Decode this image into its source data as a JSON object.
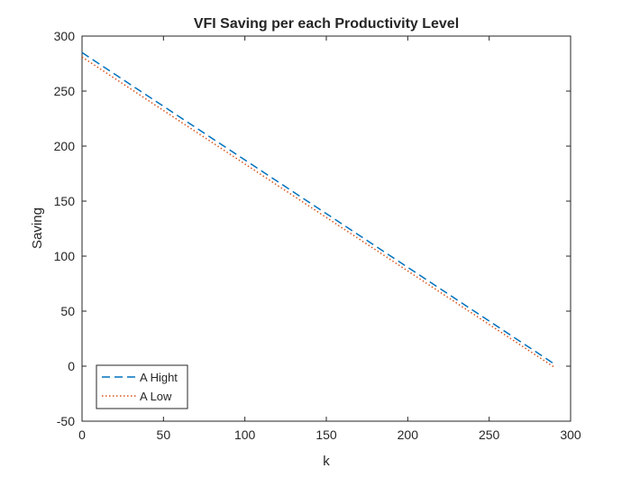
{
  "chart_data": {
    "type": "line",
    "title": "VFI Saving per each Productivity Level",
    "xlabel": "k",
    "ylabel": "Saving",
    "xlim": [
      0,
      300
    ],
    "ylim": [
      -50,
      300
    ],
    "xticks": [
      "0",
      "50",
      "100",
      "150",
      "200",
      "250",
      "300"
    ],
    "yticks": [
      "-50",
      "0",
      "50",
      "100",
      "150",
      "200",
      "250",
      "300"
    ],
    "grid": false,
    "legend_position": "bottom-left",
    "series": [
      {
        "name": "A Hight",
        "style": "dashed",
        "color": "#0072BD",
        "x": [
          0,
          290
        ],
        "y": [
          285,
          2
        ]
      },
      {
        "name": "A Low",
        "style": "dotted",
        "color": "#D95319",
        "x": [
          0,
          290
        ],
        "y": [
          281,
          -1
        ]
      }
    ]
  }
}
